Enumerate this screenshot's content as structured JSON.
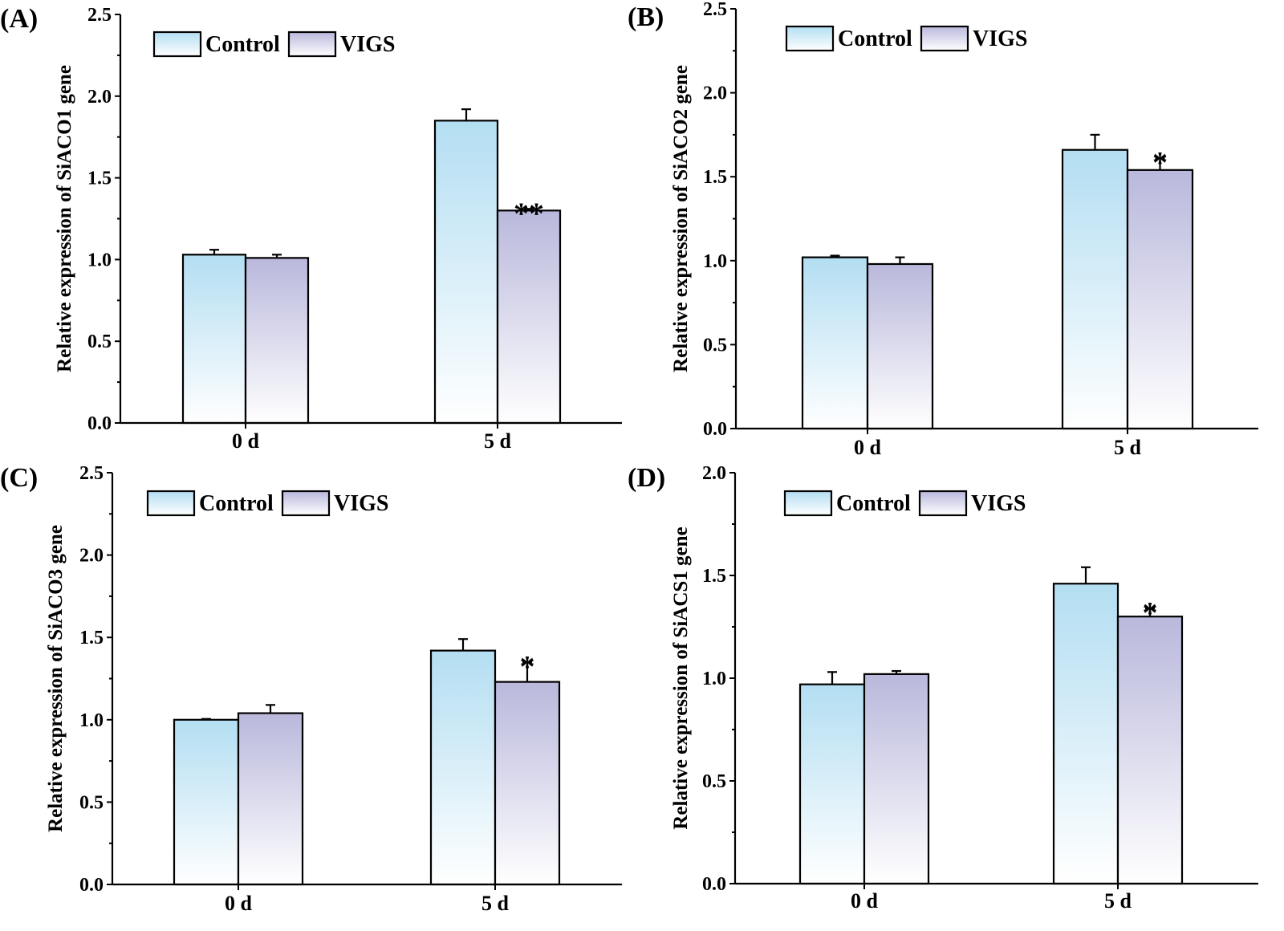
{
  "series_style": [
    {
      "name": "Control",
      "color_top": "#b3def2",
      "color_bottom": "#ffffff"
    },
    {
      "name": "VIGS",
      "color_top": "#b9b8dc",
      "color_bottom": "#ffffff"
    }
  ],
  "chart_data": [
    {
      "panel": "(A)",
      "type": "bar",
      "ylabel": "Relative expression of  SiACO1 gene",
      "categories": [
        "0 d",
        "5 d"
      ],
      "ylim": [
        0,
        2.5
      ],
      "yticks": [
        "0.0",
        "0.5",
        "1.0",
        "1.5",
        "2.0",
        "2.5"
      ],
      "legend": [
        "Control",
        "VIGS"
      ],
      "series": [
        {
          "name": "Control",
          "values": [
            1.03,
            1.85
          ],
          "errors": [
            0.03,
            0.07
          ]
        },
        {
          "name": "VIGS",
          "values": [
            1.01,
            1.3
          ],
          "errors": [
            0.02,
            0.01
          ]
        }
      ],
      "significance": [
        "",
        "**"
      ]
    },
    {
      "panel": "(B)",
      "type": "bar",
      "ylabel": "Relative expression of  SiACO2 gene",
      "categories": [
        "0 d",
        "5 d"
      ],
      "ylim": [
        0,
        2.5
      ],
      "yticks": [
        "0.0",
        "0.5",
        "1.0",
        "1.5",
        "2.0",
        "2.5"
      ],
      "legend": [
        "Control",
        "VIGS"
      ],
      "series": [
        {
          "name": "Control",
          "values": [
            1.02,
            1.66
          ],
          "errors": [
            0.01,
            0.09
          ]
        },
        {
          "name": "VIGS",
          "values": [
            0.98,
            1.54
          ],
          "errors": [
            0.04,
            0.07
          ]
        }
      ],
      "significance": [
        "",
        "*"
      ]
    },
    {
      "panel": "(C)",
      "type": "bar",
      "ylabel": "Relative expression of  SiACO3 gene",
      "categories": [
        "0 d",
        "5 d"
      ],
      "ylim": [
        0,
        2.5
      ],
      "yticks": [
        "0.0",
        "0.5",
        "1.0",
        "1.5",
        "2.0",
        "2.5"
      ],
      "legend": [
        "Control",
        "VIGS"
      ],
      "series": [
        {
          "name": "Control",
          "values": [
            1.0,
            1.42
          ],
          "errors": [
            0.005,
            0.07
          ]
        },
        {
          "name": "VIGS",
          "values": [
            1.04,
            1.23
          ],
          "errors": [
            0.05,
            0.12
          ]
        }
      ],
      "significance": [
        "",
        "*"
      ]
    },
    {
      "panel": "(D)",
      "type": "bar",
      "ylabel": "Relative expression of  SiACS1 gene",
      "categories": [
        "0 d",
        "5 d"
      ],
      "ylim": [
        0,
        2.0
      ],
      "yticks": [
        "0.0",
        "0.5",
        "1.0",
        "1.5",
        "2.0"
      ],
      "legend": [
        "Control",
        "VIGS"
      ],
      "series": [
        {
          "name": "Control",
          "values": [
            0.97,
            1.46
          ],
          "errors": [
            0.06,
            0.08
          ]
        },
        {
          "name": "VIGS",
          "values": [
            1.02,
            1.3
          ],
          "errors": [
            0.015,
            0.04
          ]
        }
      ],
      "significance": [
        "",
        "*"
      ]
    }
  ]
}
